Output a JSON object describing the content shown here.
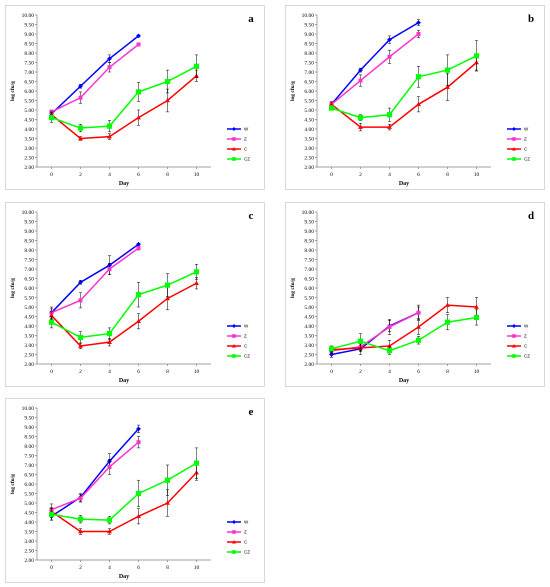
{
  "chart_data": [
    {
      "type": "line",
      "panel_label": "a",
      "xlabel": "Day",
      "ylabel": "log cfu/g",
      "x": [
        0,
        2,
        4,
        6,
        8,
        10
      ],
      "ylim": [
        2.0,
        10.0
      ],
      "yticks": [
        "2.00",
        "2.50",
        "3.00",
        "3.50",
        "4.00",
        "4.50",
        "5.00",
        "5.50",
        "6.00",
        "6.50",
        "7.00",
        "7.50",
        "8.00",
        "8.50",
        "9.00",
        "9.50",
        "10.00"
      ],
      "legend_position": "right",
      "series": [
        {
          "name": "W",
          "color": "#0000ff",
          "marker": "diamond",
          "values": [
            4.8,
            6.25,
            7.7,
            8.9,
            null,
            null
          ],
          "errors": [
            0.1,
            0.1,
            0.2,
            0.05,
            null,
            null
          ]
        },
        {
          "name": "Z",
          "color": "#ff33cc",
          "marker": "square",
          "values": [
            4.9,
            5.65,
            7.25,
            8.45,
            null,
            null
          ],
          "errors": [
            0.1,
            0.3,
            0.25,
            0.05,
            null,
            null
          ]
        },
        {
          "name": "C",
          "color": "#ff0000",
          "marker": "triangle",
          "values": [
            4.75,
            3.5,
            3.6,
            4.6,
            5.5,
            6.8
          ],
          "errors": [
            0.15,
            0.1,
            0.15,
            0.4,
            0.6,
            0.3
          ]
        },
        {
          "name": "CZ",
          "color": "#00ff00",
          "marker": "square",
          "values": [
            4.6,
            4.05,
            4.15,
            5.95,
            6.5,
            7.3
          ],
          "errors": [
            0.25,
            0.2,
            0.3,
            0.5,
            0.6,
            0.6
          ]
        }
      ]
    },
    {
      "type": "line",
      "panel_label": "b",
      "xlabel": "Day",
      "ylabel": "log cfu/g",
      "x": [
        0,
        2,
        4,
        6,
        8,
        10
      ],
      "ylim": [
        2.0,
        10.0
      ],
      "yticks": [
        "2.00",
        "2.50",
        "3.00",
        "3.50",
        "4.00",
        "4.50",
        "5.00",
        "5.50",
        "6.00",
        "6.50",
        "7.00",
        "7.50",
        "8.00",
        "8.50",
        "9.00",
        "9.50",
        "10.00"
      ],
      "legend_position": "right",
      "series": [
        {
          "name": "W",
          "color": "#0000ff",
          "marker": "diamond",
          "values": [
            5.3,
            7.1,
            8.7,
            9.6,
            null,
            null
          ],
          "errors": [
            0.1,
            0.1,
            0.2,
            0.15,
            null,
            null
          ]
        },
        {
          "name": "Z",
          "color": "#ff33cc",
          "marker": "square",
          "values": [
            5.3,
            6.55,
            7.8,
            9.0,
            null,
            null
          ],
          "errors": [
            0.1,
            0.3,
            0.35,
            0.2,
            null,
            null
          ]
        },
        {
          "name": "C",
          "color": "#ff0000",
          "marker": "triangle",
          "values": [
            5.3,
            4.1,
            4.1,
            5.3,
            6.2,
            7.5
          ],
          "errors": [
            0.15,
            0.2,
            0.15,
            0.4,
            0.7,
            0.4
          ]
        },
        {
          "name": "CZ",
          "color": "#00ff00",
          "marker": "square",
          "values": [
            5.1,
            4.6,
            4.75,
            6.75,
            7.1,
            7.85
          ],
          "errors": [
            0.1,
            0.15,
            0.35,
            0.55,
            0.8,
            0.8
          ]
        }
      ]
    },
    {
      "type": "line",
      "panel_label": "c",
      "xlabel": "Day",
      "ylabel": "log cfu/g",
      "x": [
        0,
        2,
        4,
        6,
        8,
        10
      ],
      "ylim": [
        2.0,
        10.0
      ],
      "yticks": [
        "2.00",
        "2.50",
        "3.00",
        "3.50",
        "4.00",
        "4.50",
        "5.00",
        "5.50",
        "6.00",
        "6.50",
        "7.00",
        "7.50",
        "8.00",
        "8.50",
        "9.00",
        "9.50",
        "10.00"
      ],
      "legend_position": "right",
      "series": [
        {
          "name": "W",
          "color": "#0000ff",
          "marker": "diamond",
          "values": [
            4.7,
            6.3,
            7.2,
            8.3,
            null,
            null
          ],
          "errors": [
            0.2,
            0.1,
            0.5,
            0.05,
            null,
            null
          ]
        },
        {
          "name": "Z",
          "color": "#ff33cc",
          "marker": "square",
          "values": [
            4.7,
            5.35,
            7.0,
            8.1,
            null,
            null
          ],
          "errors": [
            0.3,
            0.4,
            0.3,
            0.1,
            null,
            null
          ]
        },
        {
          "name": "C",
          "color": "#ff0000",
          "marker": "triangle",
          "values": [
            4.55,
            2.95,
            3.15,
            4.25,
            5.45,
            6.25
          ],
          "errors": [
            0.2,
            0.15,
            0.2,
            0.4,
            0.6,
            0.3
          ]
        },
        {
          "name": "CZ",
          "color": "#00ff00",
          "marker": "square",
          "values": [
            4.2,
            3.4,
            3.6,
            5.65,
            6.15,
            6.85
          ],
          "errors": [
            0.3,
            0.3,
            0.3,
            0.65,
            0.6,
            0.4
          ]
        }
      ]
    },
    {
      "type": "line",
      "panel_label": "d",
      "xlabel": "Day",
      "ylabel": "log cfu/g",
      "x": [
        0,
        2,
        4,
        6,
        8,
        10
      ],
      "ylim": [
        2.0,
        10.0
      ],
      "yticks": [
        "2.00",
        "2.50",
        "3.00",
        "3.50",
        "4.00",
        "4.50",
        "5.00",
        "5.50",
        "6.00",
        "6.50",
        "7.00",
        "7.50",
        "8.00",
        "8.50",
        "9.00",
        "9.50",
        "10.00"
      ],
      "legend_position": "right",
      "series": [
        {
          "name": "W",
          "color": "#0000ff",
          "marker": "diamond",
          "values": [
            2.5,
            2.8,
            4.0,
            4.7,
            null,
            null
          ],
          "errors": [
            0.15,
            0.1,
            0.3,
            0.3,
            null,
            null
          ]
        },
        {
          "name": "Z",
          "color": "#ff33cc",
          "marker": "square",
          "values": [
            2.7,
            2.9,
            3.95,
            4.7,
            null,
            null
          ],
          "errors": [
            0.15,
            0.4,
            0.4,
            0.4,
            null,
            null
          ]
        },
        {
          "name": "C",
          "color": "#ff0000",
          "marker": "triangle",
          "values": [
            2.75,
            2.85,
            2.95,
            3.95,
            5.1,
            5.0
          ],
          "errors": [
            0.15,
            0.2,
            0.3,
            0.4,
            0.4,
            0.5
          ]
        },
        {
          "name": "CZ",
          "color": "#00ff00",
          "marker": "square",
          "values": [
            2.8,
            3.2,
            2.7,
            3.25,
            4.2,
            4.45
          ],
          "errors": [
            0.15,
            0.4,
            0.2,
            0.2,
            0.4,
            0.4
          ]
        }
      ]
    },
    {
      "type": "line",
      "panel_label": "e",
      "xlabel": "Day",
      "ylabel": "log cfu/g",
      "x": [
        0,
        2,
        4,
        6,
        8,
        10
      ],
      "ylim": [
        2.0,
        10.0
      ],
      "yticks": [
        "2.00",
        "2.50",
        "3.00",
        "3.50",
        "4.00",
        "4.50",
        "5.00",
        "5.50",
        "6.00",
        "6.50",
        "7.00",
        "7.50",
        "8.00",
        "8.50",
        "9.00",
        "9.50",
        "10.00"
      ],
      "legend_position": "right",
      "series": [
        {
          "name": "W",
          "color": "#0000ff",
          "marker": "diamond",
          "values": [
            4.3,
            5.3,
            7.2,
            8.9,
            null,
            null
          ],
          "errors": [
            0.2,
            0.2,
            0.4,
            0.2,
            null,
            null
          ]
        },
        {
          "name": "Z",
          "color": "#ff33cc",
          "marker": "square",
          "values": [
            4.65,
            5.25,
            6.9,
            8.2,
            null,
            null
          ],
          "errors": [
            0.3,
            0.2,
            0.4,
            0.3,
            null,
            null
          ]
        },
        {
          "name": "C",
          "color": "#ff0000",
          "marker": "triangle",
          "values": [
            4.55,
            3.5,
            3.5,
            4.3,
            5.0,
            6.6
          ],
          "errors": [
            0.2,
            0.15,
            0.15,
            0.4,
            0.7,
            0.4
          ]
        },
        {
          "name": "CZ",
          "color": "#00ff00",
          "marker": "square",
          "values": [
            4.4,
            4.15,
            4.1,
            5.5,
            6.2,
            7.1
          ],
          "errors": [
            0.3,
            0.2,
            0.2,
            0.7,
            0.8,
            0.8
          ]
        }
      ]
    }
  ]
}
